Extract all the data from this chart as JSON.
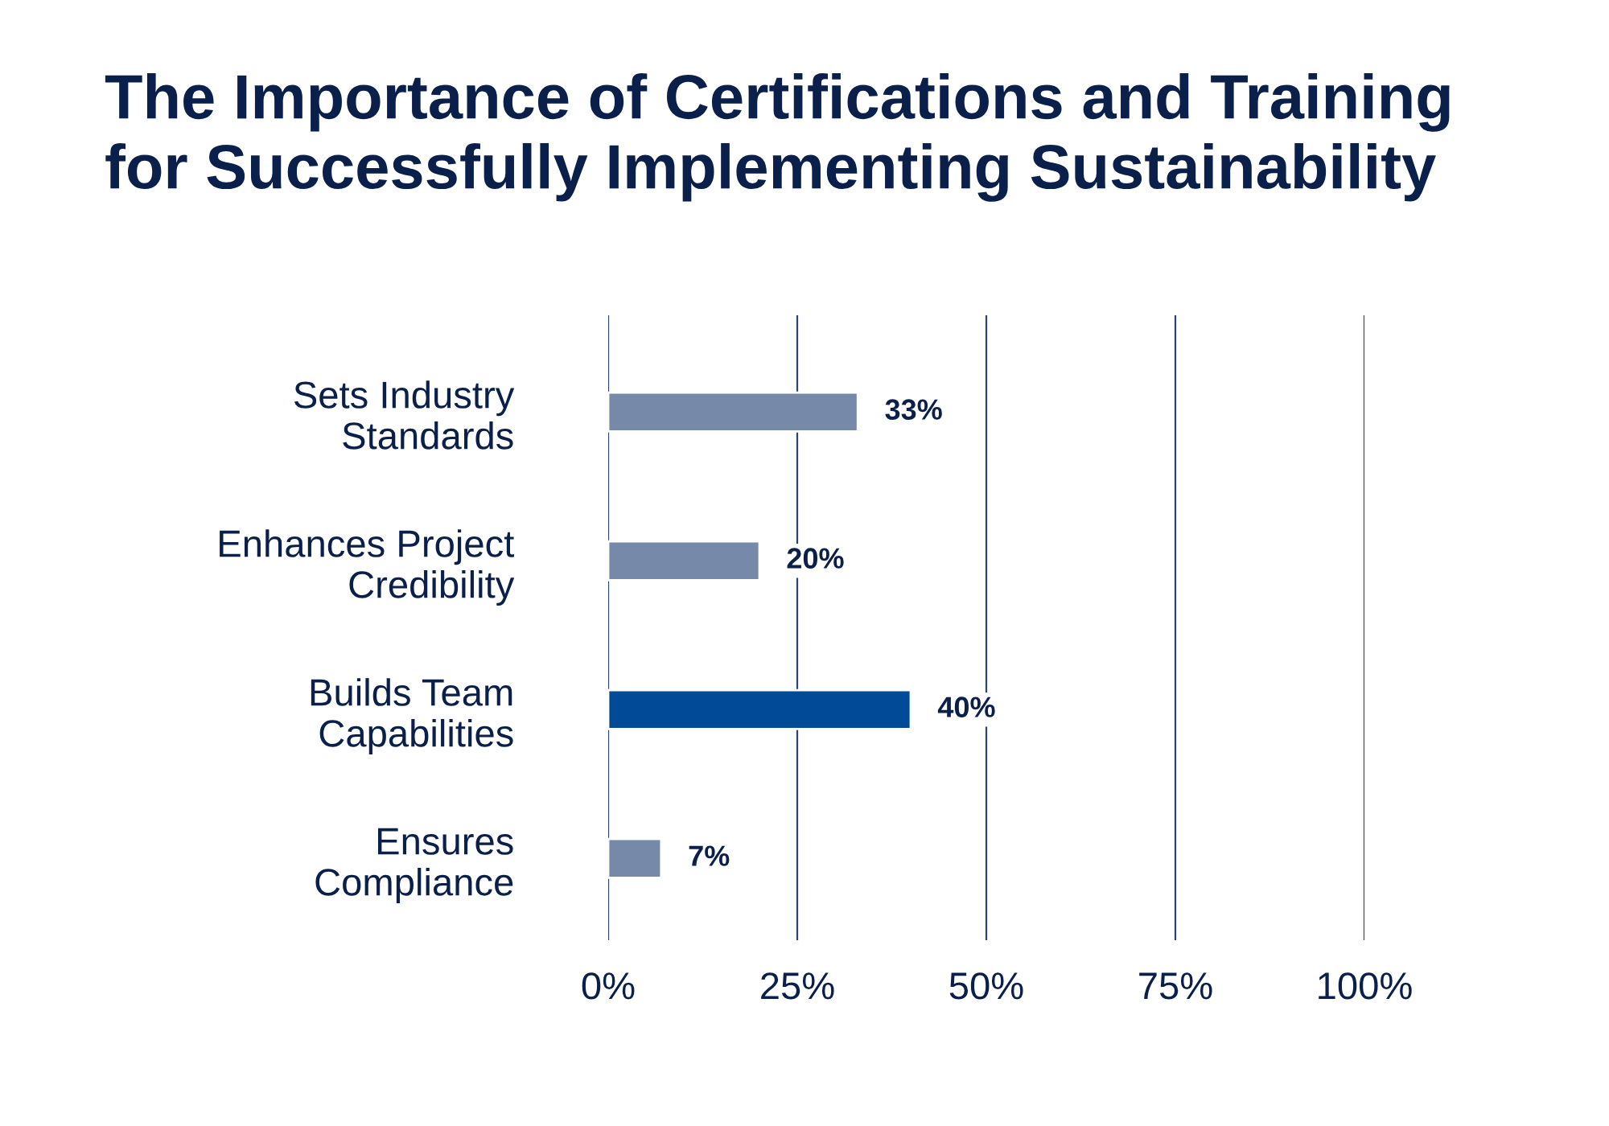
{
  "chart_data": {
    "type": "bar",
    "orientation": "horizontal",
    "title": "The Importance of Certifications and Training\nfor Successfully Implementing Sustainability",
    "categories": [
      "Sets Industry\nStandards",
      "Enhances Project\nCredibility",
      "Builds Team\nCapabilities",
      "Ensures\nCompliance"
    ],
    "values": [
      33,
      20,
      40,
      7
    ],
    "value_labels": [
      "33%",
      "20%",
      "40%",
      "7%"
    ],
    "colors": [
      "#7789a8",
      "#7789a8",
      "#004a98",
      "#7789a8"
    ],
    "xlim": [
      0,
      100
    ],
    "xticks": [
      {
        "value": 0,
        "label": "0%"
      },
      {
        "value": 25,
        "label": "25%"
      },
      {
        "value": 50,
        "label": "50%"
      },
      {
        "value": 75,
        "label": "75%"
      },
      {
        "value": 100,
        "label": "100%"
      }
    ],
    "grid": "x"
  }
}
